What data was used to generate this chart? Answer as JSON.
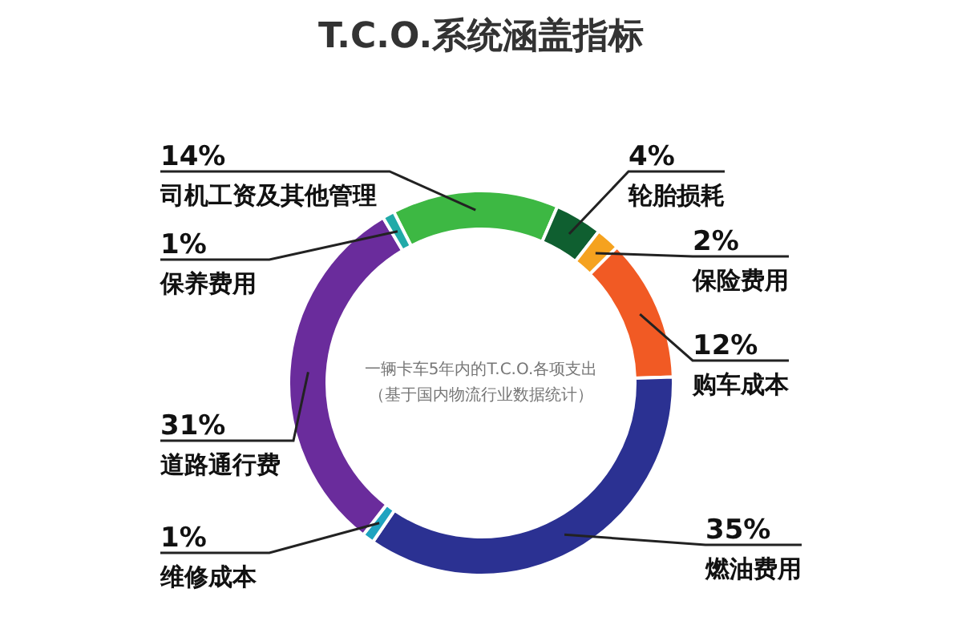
{
  "chart_data": {
    "type": "donut",
    "title": "T.C.O.系统涵盖指标",
    "categories": [
      "司机工资及其他管理",
      "轮胎损耗",
      "保险费用",
      "购车成本",
      "燃油费用",
      "维修成本",
      "道路通行费",
      "保养费用"
    ],
    "values": [
      14,
      4,
      2,
      12,
      35,
      1,
      31,
      1
    ],
    "colors": [
      "#3db843",
      "#0f5f30",
      "#f5a21f",
      "#f15a24",
      "#2b3192",
      "#1fa3c0",
      "#6a2c9c",
      "#21aaa8"
    ],
    "value_labels": [
      "14%",
      "4%",
      "2%",
      "12%",
      "35%",
      "1%",
      "31%",
      "1%"
    ],
    "legend": false,
    "annotations": [
      "一辆卡车5年内的T.C.O.各项支出",
      "（基于国内物流行业数据统计）"
    ]
  }
}
